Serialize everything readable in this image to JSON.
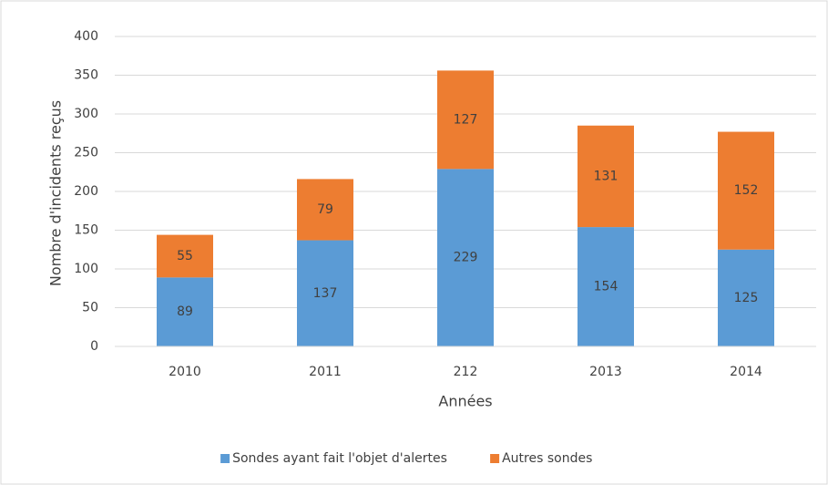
{
  "chart_data": {
    "type": "bar",
    "stacked": true,
    "x_label": "Années",
    "y_label": "Nombre d'incidents reçus",
    "categories": [
      "2010",
      "2011",
      "212",
      "2013",
      "2014"
    ],
    "series": [
      {
        "name": "Sondes ayant fait l'objet d'alertes",
        "color": "#5b9bd5",
        "values": [
          89,
          137,
          229,
          154,
          125
        ]
      },
      {
        "name": "Autres sondes",
        "color": "#ed7d31",
        "values": [
          55,
          79,
          127,
          131,
          152
        ]
      }
    ],
    "ylim": [
      0,
      400
    ],
    "yticks": [
      0,
      50,
      100,
      150,
      200,
      250,
      300,
      350,
      400
    ],
    "grid": true,
    "legend": "bottom"
  }
}
